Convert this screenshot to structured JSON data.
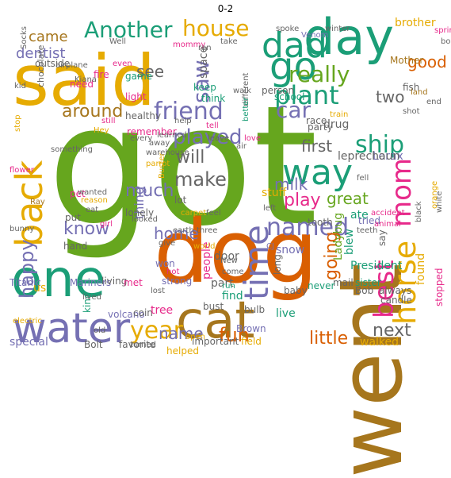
{
  "title": "0-2",
  "palette": {
    "green": "#1b9e77",
    "orange": "#d95f02",
    "purple": "#7570b3",
    "pink": "#e7298a",
    "lime": "#66a61e",
    "gold": "#e6ab02",
    "brown": "#a6761d",
    "gray": "#666666"
  },
  "words": [
    {
      "text": "got",
      "color": "lime"
    },
    {
      "text": "said",
      "color": "gold"
    },
    {
      "text": "went",
      "color": "brown"
    },
    {
      "text": "dog",
      "color": "orange"
    },
    {
      "text": "day",
      "color": "green"
    },
    {
      "text": "one",
      "color": "green"
    },
    {
      "text": "cat",
      "color": "brown"
    },
    {
      "text": "water",
      "color": "purple"
    },
    {
      "text": "dad",
      "color": "green"
    },
    {
      "text": "go",
      "color": "green"
    },
    {
      "text": "back",
      "color": "gold"
    },
    {
      "text": "time",
      "color": "purple"
    },
    {
      "text": "horse",
      "color": "gold"
    },
    {
      "text": "best",
      "color": "pink"
    },
    {
      "text": "mom",
      "color": "pink"
    },
    {
      "text": "way",
      "color": "green"
    },
    {
      "text": "friend",
      "color": "purple"
    },
    {
      "text": "named",
      "color": "purple"
    },
    {
      "text": "year",
      "color": "gold"
    },
    {
      "text": "Another",
      "color": "green"
    },
    {
      "text": "house",
      "color": "gold"
    },
    {
      "text": "plant",
      "color": "green"
    },
    {
      "text": "ship",
      "color": "green"
    },
    {
      "text": "car",
      "color": "purple"
    },
    {
      "text": "really",
      "color": "lime"
    },
    {
      "text": "played",
      "color": "purple"
    },
    {
      "text": "happy",
      "color": "purple"
    },
    {
      "text": "make",
      "color": "gray"
    },
    {
      "text": "saw",
      "color": "purple"
    },
    {
      "text": "fun",
      "color": "orange"
    },
    {
      "text": "little",
      "color": "orange"
    },
    {
      "text": "play",
      "color": "pink"
    },
    {
      "text": "much",
      "color": "purple"
    },
    {
      "text": "will",
      "color": "gray"
    },
    {
      "text": "first",
      "color": "gray"
    },
    {
      "text": "know",
      "color": "purple"
    },
    {
      "text": "around",
      "color": "brown"
    },
    {
      "text": "going",
      "color": "orange"
    },
    {
      "text": "home",
      "color": "purple"
    },
    {
      "text": "name",
      "color": "purple"
    },
    {
      "text": "milk",
      "color": "purple"
    },
    {
      "text": "good",
      "color": "orange"
    },
    {
      "text": "two",
      "color": "gray"
    },
    {
      "text": "next",
      "color": "gray"
    },
    {
      "text": "see",
      "color": "gray"
    },
    {
      "text": "great",
      "color": "lime"
    },
    {
      "text": "came",
      "color": "brown"
    },
    {
      "text": "dentist",
      "color": "purple"
    },
    {
      "text": "thing",
      "color": "purple"
    },
    {
      "text": "Ladybug",
      "color": "lime"
    },
    {
      "text": "Lorax",
      "color": "purple"
    },
    {
      "text": "leprechaun",
      "color": "gray"
    },
    {
      "text": "space",
      "color": "gray"
    },
    {
      "text": "stuff",
      "color": "gold"
    },
    {
      "text": "tooth",
      "color": "gray"
    },
    {
      "text": "President",
      "color": "green"
    },
    {
      "text": "drug",
      "color": "gray"
    },
    {
      "text": "ate",
      "color": "green"
    },
    {
      "text": "door",
      "color": "gray"
    },
    {
      "text": "snow",
      "color": "purple"
    },
    {
      "text": "part",
      "color": "gray"
    },
    {
      "text": "put",
      "color": "gray"
    },
    {
      "text": "won",
      "color": "purple"
    },
    {
      "text": "live",
      "color": "green"
    },
    {
      "text": "hand",
      "color": "gray"
    },
    {
      "text": "Titanic",
      "color": "purple"
    },
    {
      "text": "us",
      "color": "gold"
    },
    {
      "text": "Mariners",
      "color": "purple"
    },
    {
      "text": "living",
      "color": "gray"
    },
    {
      "text": "met",
      "color": "pink"
    },
    {
      "text": "volcano",
      "color": "purple"
    },
    {
      "text": "kind",
      "color": "green"
    },
    {
      "text": "strong",
      "color": "purple"
    },
    {
      "text": "candle",
      "color": "gray"
    },
    {
      "text": "Bob",
      "color": "gray"
    },
    {
      "text": "brother",
      "color": "gold"
    },
    {
      "text": "Mother",
      "color": "brown"
    },
    {
      "text": "chocolate",
      "color": "gray"
    },
    {
      "text": "Socks",
      "color": "gray"
    },
    {
      "text": "outside",
      "color": "gray"
    },
    {
      "text": "need",
      "color": "pink"
    },
    {
      "text": "fire",
      "color": "pink"
    },
    {
      "text": "game",
      "color": "green"
    },
    {
      "text": "light",
      "color": "pink"
    },
    {
      "text": "healthy",
      "color": "gray"
    },
    {
      "text": "remember",
      "color": "pink"
    },
    {
      "text": "keep",
      "color": "green"
    },
    {
      "text": "think",
      "color": "green"
    },
    {
      "text": "person",
      "color": "gray"
    },
    {
      "text": "school",
      "color": "green"
    },
    {
      "text": "race",
      "color": "gray"
    },
    {
      "text": "mail",
      "color": "gray"
    },
    {
      "text": "sister",
      "color": "green"
    },
    {
      "text": "never",
      "color": "green"
    },
    {
      "text": "always",
      "color": "gray"
    },
    {
      "text": "baby",
      "color": "gray"
    },
    {
      "text": "found",
      "color": "gold"
    },
    {
      "text": "stopped",
      "color": "pink"
    },
    {
      "text": "walked",
      "color": "gold"
    },
    {
      "text": "special",
      "color": "purple"
    },
    {
      "text": "Bolt",
      "color": "gray"
    },
    {
      "text": "favorite",
      "color": "gray"
    },
    {
      "text": "helped",
      "color": "gold"
    },
    {
      "text": "important",
      "color": "gray"
    },
    {
      "text": "Brown",
      "color": "purple"
    },
    {
      "text": "field",
      "color": "gold"
    },
    {
      "text": "bulb",
      "color": "gray"
    },
    {
      "text": "bust",
      "color": "gray"
    },
    {
      "text": "coin",
      "color": "gray"
    },
    {
      "text": "tree",
      "color": "pink"
    },
    {
      "text": "turned",
      "color": "gray"
    },
    {
      "text": "open",
      "color": "gold"
    },
    {
      "text": "electric",
      "color": "gold"
    },
    {
      "text": "old",
      "color": "gray"
    },
    {
      "text": "hot",
      "color": "pink"
    },
    {
      "text": "lost",
      "color": "gray"
    },
    {
      "text": "run",
      "color": "green"
    },
    {
      "text": "find",
      "color": "green"
    },
    {
      "text": "come",
      "color": "gray"
    },
    {
      "text": "people",
      "color": "pink"
    },
    {
      "text": "New",
      "color": "gray"
    },
    {
      "text": "long",
      "color": "gray"
    },
    {
      "text": "CJ",
      "color": "purple"
    },
    {
      "text": "earth",
      "color": "gray"
    },
    {
      "text": "three",
      "color": "gray"
    },
    {
      "text": "world",
      "color": "gold"
    },
    {
      "text": "give",
      "color": "gray"
    },
    {
      "text": "feel",
      "color": "gray"
    },
    {
      "text": "left",
      "color": "gray"
    },
    {
      "text": "lot",
      "color": "gray"
    },
    {
      "text": "carpet",
      "color": "gold"
    },
    {
      "text": "looked",
      "color": "gray"
    },
    {
      "text": "lonely",
      "color": "gray"
    },
    {
      "text": "eat",
      "color": "gray"
    },
    {
      "text": "reason",
      "color": "gold"
    },
    {
      "text": "pet",
      "color": "pink"
    },
    {
      "text": "wanted",
      "color": "gray"
    },
    {
      "text": "Ray",
      "color": "brown"
    },
    {
      "text": "bunny",
      "color": "gray"
    },
    {
      "text": "flower",
      "color": "pink"
    },
    {
      "text": "something",
      "color": "gray"
    },
    {
      "text": "kid",
      "color": "gray"
    },
    {
      "text": "stop",
      "color": "gold"
    },
    {
      "text": "airplane",
      "color": "gray"
    },
    {
      "text": "Kiana",
      "color": "gray"
    },
    {
      "text": "Well",
      "color": "gray"
    },
    {
      "text": "even",
      "color": "pink"
    },
    {
      "text": "mommy",
      "color": "pink"
    },
    {
      "text": "ran",
      "color": "gray"
    },
    {
      "text": "take",
      "color": "gray"
    },
    {
      "text": "Venom",
      "color": "purple"
    },
    {
      "text": "spoke",
      "color": "gray"
    },
    {
      "text": "winter",
      "color": "gray"
    },
    {
      "text": "spring",
      "color": "pink"
    },
    {
      "text": "book",
      "color": "gray"
    },
    {
      "text": "fish",
      "color": "gray"
    },
    {
      "text": "land",
      "color": "brown"
    },
    {
      "text": "end",
      "color": "gray"
    },
    {
      "text": "shot",
      "color": "gray"
    },
    {
      "text": "party",
      "color": "gray"
    },
    {
      "text": "train",
      "color": "gold"
    },
    {
      "text": "love",
      "color": "pink"
    },
    {
      "text": "air",
      "color": "gray"
    },
    {
      "text": "leave",
      "color": "gray"
    },
    {
      "text": "tell",
      "color": "pink"
    },
    {
      "text": "help",
      "color": "gray"
    },
    {
      "text": "learned",
      "color": "gray"
    },
    {
      "text": "away",
      "color": "gray"
    },
    {
      "text": "Hey",
      "color": "gold"
    },
    {
      "text": "still",
      "color": "pink"
    },
    {
      "text": "every",
      "color": "gray"
    },
    {
      "text": "different",
      "color": "gray"
    },
    {
      "text": "better",
      "color": "green"
    },
    {
      "text": "walk",
      "color": "gray"
    },
    {
      "text": "fell",
      "color": "gray"
    },
    {
      "text": "white",
      "color": "gray"
    },
    {
      "text": "orange",
      "color": "gold"
    },
    {
      "text": "tried",
      "color": "purple"
    },
    {
      "text": "accident",
      "color": "pink"
    },
    {
      "text": "animal",
      "color": "pink"
    },
    {
      "text": "teeth",
      "color": "gray"
    },
    {
      "text": "blew",
      "color": "green"
    },
    {
      "text": "say",
      "color": "gray"
    },
    {
      "text": "black",
      "color": "gray"
    },
    {
      "text": "girl",
      "color": "pink"
    },
    {
      "text": "parrot",
      "color": "gold"
    },
    {
      "text": "warehouse",
      "color": "gray"
    },
    {
      "text": "Buster",
      "color": "gold"
    },
    {
      "text": "lived",
      "color": "gray"
    },
    {
      "text": "big",
      "color": "gray"
    },
    {
      "text": "ground",
      "color": "gray"
    },
    {
      "text": "want",
      "color": "gold"
    }
  ]
}
